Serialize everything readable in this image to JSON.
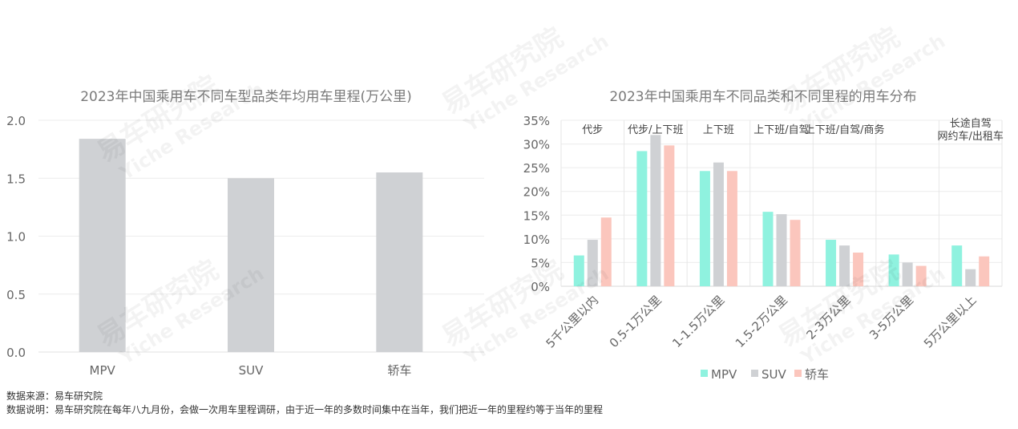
{
  "footer": {
    "source": "数据来源：易车研究院",
    "note": "数据说明：易车研究院在每年八九月份，会做一次用车里程调研，由于近一年的多数时间集中在当年，我们把近一年的里程约等于当年的里程"
  },
  "watermark": {
    "cn": "易车研究院",
    "en": "Yiche Research"
  },
  "colors": {
    "mpv": "#8ff2df",
    "suv": "#cfd1d4",
    "car": "#fbc6bd",
    "bar_left": "#cfd1d4",
    "grid": "#ececec"
  },
  "chart_data": [
    {
      "type": "bar",
      "title": "2023年中国乘用车不同车型品类年均用车里程(万公里)",
      "categories": [
        "MPV",
        "SUV",
        "轿车"
      ],
      "values": [
        1.84,
        1.5,
        1.55
      ],
      "ylim": [
        0,
        2.0
      ],
      "yticks": [
        "0.0",
        "0.5",
        "1.0",
        "1.5",
        "2.0"
      ],
      "ytick_values": [
        0,
        0.5,
        1.0,
        1.5,
        2.0
      ],
      "grid": true
    },
    {
      "type": "bar",
      "title": "2023年中国乘用车不同品类和不同里程的用车分布",
      "categories": [
        "5千公里以内",
        "0.5-1万公里",
        "1-1.5万公里",
        "1.5-2万公里",
        "2-3万公里",
        "3-5万公里",
        "5万公里以上"
      ],
      "category_annotations": [
        [
          "代步"
        ],
        [
          "代步/上下班"
        ],
        [
          "上下班"
        ],
        [
          "上下班/自驾"
        ],
        [
          "上下班/自驾/商务"
        ],
        [],
        [
          "长途自驾",
          "网约车/出租车"
        ]
      ],
      "series": [
        {
          "name": "MPV",
          "values": [
            6.5,
            28.5,
            24.3,
            15.7,
            9.8,
            6.7,
            8.6
          ]
        },
        {
          "name": "SUV",
          "values": [
            9.8,
            31.9,
            26.1,
            15.2,
            8.6,
            5.0,
            3.6
          ]
        },
        {
          "name": "轿车",
          "values": [
            14.5,
            29.7,
            24.3,
            14.0,
            7.1,
            4.3,
            6.3
          ]
        }
      ],
      "ylim": [
        0,
        35
      ],
      "yticks": [
        "0%",
        "5%",
        "10%",
        "15%",
        "20%",
        "25%",
        "30%",
        "35%"
      ],
      "ytick_values": [
        0,
        5,
        10,
        15,
        20,
        25,
        30,
        35
      ],
      "legend_position": "bottom",
      "grid": true
    }
  ]
}
